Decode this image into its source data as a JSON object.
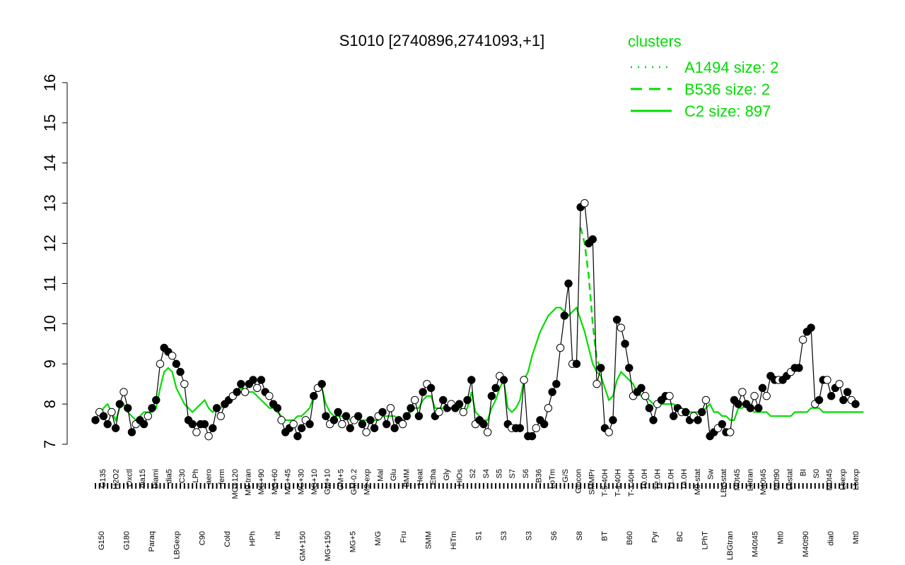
{
  "chart_data": {
    "type": "line",
    "title": "S1010 [2740896,2741093,+1]",
    "xlabel": "",
    "ylabel": "",
    "ylim": [
      7,
      16
    ],
    "yticks": [
      7,
      8,
      9,
      10,
      11,
      12,
      13,
      14,
      15,
      16
    ],
    "grid": false,
    "legend": {
      "title": "clusters",
      "placement": "top-right",
      "color": "#00dd00",
      "entries": [
        {
          "label": "A1494 size: 2",
          "style": "dotted"
        },
        {
          "label": "B536 size: 2",
          "style": "dashed"
        },
        {
          "label": "C2 size: 897",
          "style": "solid"
        }
      ]
    },
    "colors": {
      "series": "#000000",
      "cluster": "#00dd00",
      "point_fill": "#000000",
      "point_alt_fill": "#ffffff"
    },
    "x_labels_upper": [
      "G135",
      "H2O2",
      "Oxctl",
      "dia15",
      "Diami",
      "dia5",
      "C30",
      "LPh",
      "aero",
      "ferm",
      "MG+120",
      "M9-tran",
      "MG+90",
      "MG+60",
      "MG+45",
      "MG+30",
      "MG+10",
      "GM+10",
      "GM+5",
      "GM-0.2",
      "M9-exp",
      "Mal",
      "Glu",
      "BMM",
      "Heat",
      "Etha",
      "Gly",
      "HiOs",
      "S2",
      "S4",
      "S5",
      "S7",
      "S6",
      "B36",
      "LoTm",
      "G/S",
      "Glucon",
      "SMMPr",
      "T-5.40H",
      "T-4.40H",
      "T-3.40H",
      "T0.0H",
      "T2.0H",
      "T1.0H",
      "T4.0H",
      "M9-stat",
      "Sw",
      "LBGstat",
      "M0t45",
      "Lbtran",
      "M40t45",
      "M0t90",
      "Lbstat",
      "BI",
      "S0",
      "M0t45",
      "Lbexp",
      "Lbexp"
    ],
    "x_labels_lower": [
      "G150",
      "G180",
      "Paraq",
      "LBGexp",
      "C90",
      "Cold",
      "HPh",
      "nit",
      "GM+150",
      "MG+150",
      "MG+5",
      "M/G",
      "Fru",
      "SMM",
      "HiTm",
      "S1",
      "S3",
      "S3",
      "S6",
      "S8",
      "BT",
      "B60",
      "Pyr",
      "BC",
      "LPhT",
      "LBGtran",
      "M40t45",
      "Mt0",
      "M40t90",
      "dia0",
      "Mt0"
    ],
    "series": [
      {
        "values": [
          7.6,
          7.8,
          7.7,
          7.5,
          7.8,
          7.4,
          8.0,
          8.3,
          7.9,
          7.3,
          7.5,
          7.6,
          7.5,
          7.7,
          7.9,
          8.1,
          9.0,
          9.4,
          9.3,
          9.2,
          9.0,
          8.8,
          8.5,
          7.6,
          7.5,
          7.3,
          7.5,
          7.5,
          7.2,
          7.4,
          7.9,
          7.7,
          8.0,
          8.1,
          8.2,
          8.3,
          8.5,
          8.3,
          8.5,
          8.6,
          8.4,
          8.6,
          8.3,
          8.2,
          8.0,
          7.9,
          7.6,
          7.3,
          7.4,
          7.5,
          7.2,
          7.4,
          7.6,
          7.5,
          8.2,
          8.4,
          8.5,
          7.7,
          7.5,
          7.6,
          7.8,
          7.5,
          7.7,
          7.4,
          7.6,
          7.7,
          7.5,
          7.3,
          7.6,
          7.4,
          7.7,
          7.8,
          7.5,
          7.9,
          7.4,
          7.6,
          7.5,
          7.7,
          7.9,
          8.1,
          7.7,
          8.3,
          8.5,
          8.4,
          7.7,
          7.8,
          8.1,
          7.9,
          8.0,
          7.9,
          8.0,
          7.8,
          8.1,
          8.6,
          7.5,
          7.6,
          7.5,
          7.3,
          8.2,
          8.4,
          8.7,
          8.6,
          7.5,
          7.4,
          7.4,
          7.4,
          8.6,
          7.2,
          7.2,
          7.4,
          7.6,
          7.5,
          7.9,
          8.3,
          8.5,
          9.4,
          10.2,
          11.0,
          9.0,
          9.0,
          12.9,
          13.0,
          12.0,
          12.1,
          8.5,
          8.9,
          7.4,
          7.3,
          7.6,
          10.1,
          9.9,
          9.5,
          8.9,
          8.2,
          8.3,
          8.4,
          8.2,
          7.9,
          7.6,
          8.0,
          8.1,
          8.2,
          8.2,
          7.7,
          7.9,
          7.8,
          7.8,
          7.6,
          7.7,
          7.6,
          7.8,
          8.1,
          7.2,
          7.3,
          7.4,
          7.5,
          7.3,
          7.3,
          8.1,
          8.0,
          8.3,
          8.0,
          7.9,
          8.2,
          7.9,
          8.4,
          8.2,
          8.7,
          8.6,
          8.6,
          8.6,
          8.7,
          8.8,
          8.9,
          8.9,
          9.6,
          9.8,
          9.9,
          8.0,
          8.1,
          8.6,
          8.6,
          8.2,
          8.4,
          8.5,
          8.1,
          8.3,
          8.1,
          8.0
        ]
      },
      {
        "name": "C2 size: 897",
        "values": [
          7.8,
          7.7,
          7.9,
          8.0,
          7.8,
          7.6,
          7.9,
          8.0,
          7.8,
          7.7,
          7.6,
          7.7,
          7.8,
          7.8,
          7.8,
          7.9,
          8.4,
          8.8,
          8.9,
          8.8,
          8.4,
          8.2,
          8.0,
          7.9,
          7.8,
          7.9,
          8.0,
          8.1,
          7.9,
          7.8,
          7.9,
          7.9,
          8.0,
          8.1,
          8.2,
          8.3,
          8.4,
          8.3,
          8.3,
          8.3,
          8.2,
          8.1,
          8.0,
          7.9,
          7.9,
          7.8,
          7.7,
          7.6,
          7.6,
          7.6,
          7.7,
          7.7,
          7.8,
          7.9,
          8.2,
          8.4,
          8.4,
          8.0,
          7.8,
          7.7,
          7.7,
          7.7,
          7.7,
          7.6,
          7.6,
          7.6,
          7.6,
          7.6,
          7.6,
          7.6,
          7.6,
          7.7,
          7.7,
          7.7,
          7.7,
          7.6,
          7.6,
          7.7,
          7.8,
          7.9,
          7.9,
          8.1,
          8.2,
          8.2,
          7.9,
          7.9,
          7.9,
          7.9,
          7.9,
          7.9,
          7.9,
          7.8,
          7.9,
          8.3,
          7.8,
          7.7,
          7.6,
          7.6,
          7.9,
          8.1,
          8.4,
          8.6,
          7.9,
          7.8,
          7.9,
          8.1,
          8.6,
          8.8,
          9.2,
          9.5,
          9.8,
          10.0,
          10.2,
          10.3,
          10.4,
          10.4,
          10.3,
          10.2,
          10.3,
          10.4,
          10.1,
          9.8,
          9.4,
          9.0,
          8.8,
          8.7,
          8.4,
          8.1,
          8.2,
          8.6,
          8.8,
          8.7,
          8.6,
          8.5,
          8.3,
          8.2,
          8.2,
          8.1,
          8.0,
          8.0,
          8.0,
          8.0,
          8.0,
          8.0,
          7.9,
          7.9,
          7.8,
          7.8,
          7.8,
          7.8,
          7.8,
          7.9,
          8.0,
          7.8,
          7.8,
          7.7,
          7.7,
          7.6,
          7.6,
          7.9,
          7.9,
          8.0,
          7.9,
          7.8,
          7.8,
          7.8,
          7.8,
          7.7,
          7.7,
          7.7,
          7.7,
          7.7,
          7.7,
          7.8,
          7.8,
          7.8,
          7.8,
          7.9,
          7.9,
          7.9,
          7.8,
          7.8,
          7.8,
          7.8,
          7.8,
          7.8,
          7.8,
          7.8,
          7.8,
          7.8,
          7.8
        ]
      },
      {
        "name": "B536 size: 2",
        "values": [
          12.4,
          12.0,
          11.2,
          10.0,
          9.1,
          8.9
        ]
      }
    ]
  }
}
